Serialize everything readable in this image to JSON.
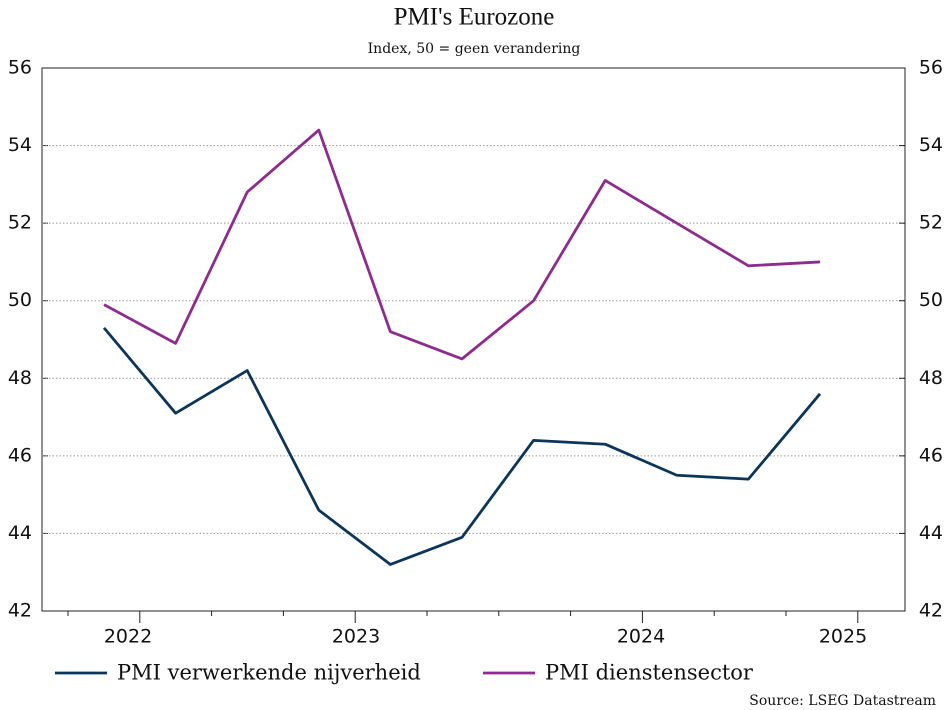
{
  "chart_data": {
    "type": "line",
    "title": "PMI's Eurozone",
    "subtitle": "Index, 50 = geen verandering",
    "source": "Source: LSEG Datastream",
    "categories": [
      null,
      null,
      null,
      null,
      null,
      null,
      null,
      null,
      null,
      null,
      null
    ],
    "x_labels": [
      "2022",
      "2023",
      "2024",
      "2025"
    ],
    "series": [
      {
        "name": "PMI verwerkende nijverheid",
        "color": "#0c3559",
        "values": [
          49.3,
          47.1,
          48.2,
          44.6,
          43.2,
          43.9,
          46.4,
          46.3,
          45.5,
          45.4,
          47.6
        ]
      },
      {
        "name": "PMI dienstensector",
        "color": "#8e2c8e",
        "values": [
          49.9,
          48.9,
          52.8,
          54.4,
          49.2,
          48.5,
          50.0,
          53.1,
          52.0,
          50.9,
          51.0
        ]
      }
    ],
    "ylim": [
      42,
      56
    ],
    "yticks": [
      42,
      44,
      46,
      48,
      50,
      52,
      54,
      56
    ],
    "y2lim": [
      42,
      56
    ],
    "y2ticks": [
      42,
      44,
      46,
      48,
      50,
      52,
      54,
      56
    ],
    "grid": true
  }
}
